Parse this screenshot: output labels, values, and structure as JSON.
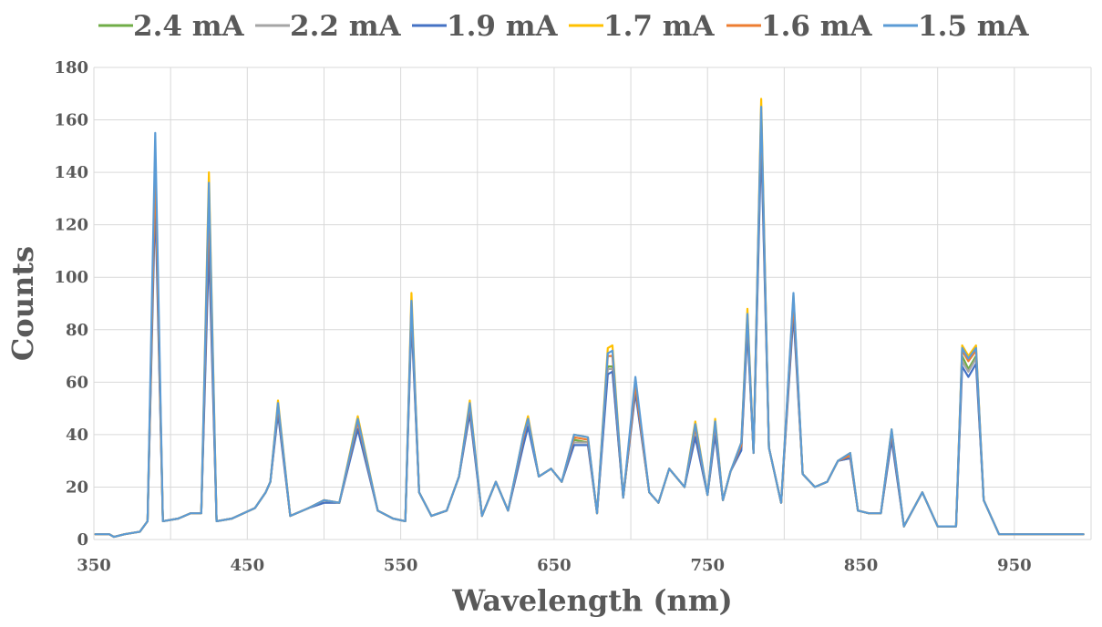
{
  "chart_data": {
    "type": "line",
    "title": "",
    "xlabel": "Wavelength (nm)",
    "ylabel": "Counts",
    "xlim": [
      350,
      1000
    ],
    "ylim": [
      0,
      180
    ],
    "xticks": [
      350,
      450,
      550,
      650,
      750,
      850,
      950
    ],
    "yticks": [
      0,
      20,
      40,
      60,
      80,
      100,
      120,
      140,
      160,
      180
    ],
    "grid": true,
    "legend_position": "top",
    "peaks_x": [
      351,
      360,
      363,
      370,
      380,
      385,
      390,
      395,
      405,
      413,
      420,
      425,
      430,
      440,
      455,
      462,
      465,
      470,
      478,
      490,
      500,
      510,
      522,
      535,
      545,
      553,
      557,
      562,
      570,
      580,
      588,
      595,
      603,
      612,
      620,
      630,
      633,
      640,
      648,
      655,
      663,
      672,
      678,
      685,
      688,
      695,
      703,
      712,
      718,
      725,
      735,
      742,
      750,
      755,
      760,
      765,
      772,
      776,
      780,
      785,
      790,
      798,
      806,
      812,
      820,
      828,
      835,
      843,
      848,
      855,
      863,
      870,
      878,
      890,
      900,
      907,
      912,
      916,
      920,
      925,
      930,
      940,
      950,
      960,
      970,
      985,
      995
    ],
    "series": [
      {
        "name": "2.4 mA",
        "color": "#70AD47",
        "values": [
          2,
          2,
          1,
          2,
          3,
          7,
          140,
          7,
          8,
          10,
          10,
          120,
          7,
          8,
          12,
          18,
          22,
          50,
          9,
          12,
          15,
          14,
          44,
          11,
          8,
          7,
          88,
          18,
          9,
          11,
          24,
          50,
          9,
          22,
          11,
          38,
          45,
          24,
          27,
          22,
          38,
          37,
          10,
          66,
          66,
          16,
          58,
          18,
          14,
          27,
          20,
          41,
          17,
          42,
          15,
          26,
          35,
          83,
          33,
          160,
          35,
          14,
          90,
          25,
          20,
          22,
          30,
          32,
          11,
          10,
          10,
          40,
          5,
          18,
          5,
          5,
          5,
          70,
          65,
          70,
          15,
          2,
          2,
          2,
          2,
          2,
          2
        ]
      },
      {
        "name": "2.2 mA",
        "color": "#A5A5A5",
        "values": [
          2,
          2,
          1,
          2,
          3,
          7,
          135,
          7,
          8,
          10,
          10,
          118,
          7,
          8,
          12,
          18,
          22,
          49,
          9,
          12,
          14,
          14,
          43,
          11,
          8,
          7,
          86,
          18,
          9,
          11,
          24,
          49,
          9,
          22,
          11,
          37,
          44,
          24,
          27,
          22,
          37,
          37,
          10,
          65,
          65,
          16,
          57,
          18,
          14,
          27,
          20,
          40,
          17,
          41,
          15,
          26,
          35,
          81,
          33,
          155,
          35,
          14,
          88,
          25,
          20,
          22,
          30,
          31,
          11,
          10,
          10,
          39,
          5,
          18,
          5,
          5,
          5,
          68,
          64,
          69,
          15,
          2,
          2,
          2,
          2,
          2,
          2
        ]
      },
      {
        "name": "1.9 mA",
        "color": "#4472C4",
        "values": [
          2,
          2,
          1,
          2,
          3,
          7,
          130,
          7,
          8,
          10,
          10,
          112,
          7,
          8,
          12,
          18,
          22,
          48,
          9,
          12,
          14,
          14,
          42,
          11,
          8,
          7,
          84,
          18,
          9,
          11,
          24,
          48,
          9,
          22,
          11,
          36,
          43,
          24,
          27,
          22,
          36,
          36,
          10,
          63,
          64,
          16,
          56,
          18,
          14,
          27,
          20,
          39,
          17,
          40,
          15,
          26,
          34,
          80,
          33,
          152,
          35,
          14,
          86,
          25,
          20,
          22,
          30,
          31,
          11,
          10,
          10,
          38,
          5,
          18,
          5,
          5,
          5,
          66,
          62,
          67,
          15,
          2,
          2,
          2,
          2,
          2,
          2
        ]
      },
      {
        "name": "1.7 mA",
        "color": "#FFC000",
        "values": [
          2,
          2,
          1,
          2,
          3,
          7,
          145,
          7,
          8,
          10,
          10,
          140,
          7,
          8,
          12,
          18,
          22,
          53,
          9,
          12,
          15,
          14,
          47,
          11,
          8,
          7,
          94,
          18,
          9,
          11,
          24,
          53,
          9,
          22,
          11,
          40,
          47,
          24,
          27,
          22,
          40,
          39,
          10,
          73,
          74,
          16,
          60,
          18,
          14,
          27,
          20,
          45,
          17,
          46,
          15,
          26,
          37,
          88,
          33,
          168,
          35,
          14,
          93,
          25,
          20,
          22,
          30,
          33,
          11,
          10,
          10,
          42,
          5,
          18,
          5,
          5,
          5,
          74,
          70,
          74,
          15,
          2,
          2,
          2,
          2,
          2,
          2
        ]
      },
      {
        "name": "1.6 mA",
        "color": "#ED7D31",
        "values": [
          2,
          2,
          1,
          2,
          3,
          7,
          142,
          7,
          8,
          10,
          10,
          128,
          7,
          8,
          12,
          18,
          22,
          51,
          9,
          12,
          15,
          14,
          45,
          11,
          8,
          7,
          90,
          18,
          9,
          11,
          24,
          51,
          9,
          22,
          11,
          39,
          46,
          24,
          27,
          22,
          39,
          38,
          10,
          70,
          70,
          16,
          59,
          18,
          14,
          27,
          20,
          43,
          17,
          44,
          15,
          26,
          36,
          85,
          33,
          163,
          35,
          14,
          91,
          25,
          20,
          22,
          30,
          32,
          11,
          10,
          10,
          41,
          5,
          18,
          5,
          5,
          5,
          72,
          68,
          72,
          15,
          2,
          2,
          2,
          2,
          2,
          2
        ]
      },
      {
        "name": "1.5 mA",
        "color": "#5B9BD5",
        "values": [
          2,
          2,
          1,
          2,
          3,
          7,
          155,
          7,
          8,
          10,
          10,
          136,
          7,
          8,
          12,
          18,
          22,
          52,
          9,
          12,
          15,
          14,
          46,
          11,
          8,
          7,
          91,
          18,
          9,
          11,
          24,
          52,
          9,
          22,
          11,
          40,
          46,
          24,
          27,
          22,
          40,
          39,
          10,
          71,
          72,
          16,
          62,
          18,
          14,
          27,
          20,
          44,
          17,
          45,
          15,
          26,
          37,
          86,
          33,
          165,
          35,
          14,
          94,
          25,
          20,
          22,
          30,
          33,
          11,
          10,
          10,
          42,
          5,
          18,
          5,
          5,
          5,
          73,
          69,
          73,
          15,
          2,
          2,
          2,
          2,
          2,
          2
        ]
      }
    ]
  }
}
